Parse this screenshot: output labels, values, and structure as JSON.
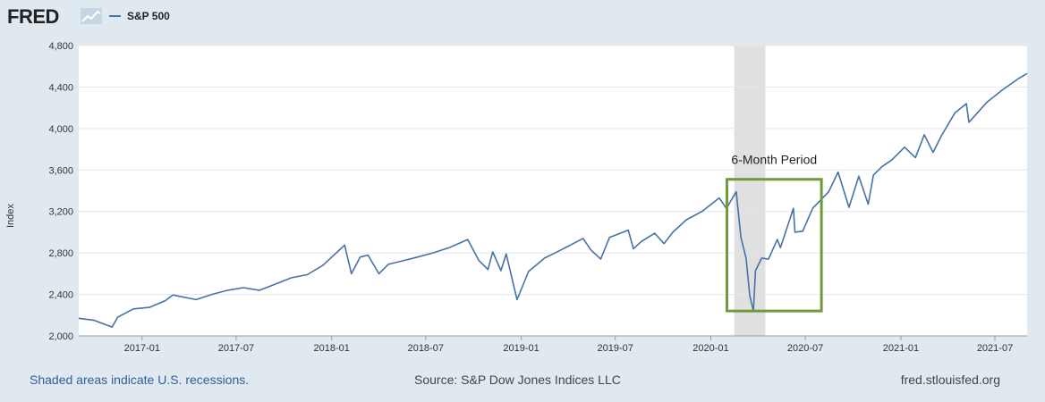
{
  "header": {
    "brand": "FRED",
    "legend_label": "S&P 500"
  },
  "footer": {
    "recession_note": "Shaded areas indicate U.S. recessions.",
    "source": "Source: S&P Dow Jones Indices LLC",
    "site": "fred.stlouisfed.org"
  },
  "colors": {
    "series": "#4572a7",
    "highlight_box": "#6f9a3a",
    "recession_shade": "#e0e0e0",
    "background": "#e1e9f0"
  },
  "chart_data": {
    "type": "line",
    "ylabel": "Index",
    "ylim": [
      2000,
      4800
    ],
    "yticks": [
      2000,
      2400,
      2800,
      3200,
      3600,
      4000,
      4400,
      4800
    ],
    "ytick_labels": [
      "2,000",
      "2,400",
      "2,800",
      "3,200",
      "3,600",
      "4,000",
      "4,400",
      "4,800"
    ],
    "xlim": [
      "2016-09-01",
      "2021-09-01"
    ],
    "xticks": [
      "2017-01-01",
      "2017-07-01",
      "2018-01-01",
      "2018-07-01",
      "2019-01-01",
      "2019-07-01",
      "2020-01-01",
      "2020-07-01",
      "2021-01-01",
      "2021-07-01"
    ],
    "xtick_labels": [
      "2017-01",
      "2017-07",
      "2018-01",
      "2018-07",
      "2019-01",
      "2019-07",
      "2020-01",
      "2020-07",
      "2021-01",
      "2021-07"
    ],
    "grid": true,
    "legend": "top-left",
    "recession": {
      "start": "2020-02-15",
      "end": "2020-04-15"
    },
    "annotation": {
      "text": "6-Month Period",
      "start": "2020-02-01",
      "end": "2020-08-01",
      "low": 2240,
      "high": 3510
    },
    "series": [
      {
        "name": "S&P 500",
        "dates": [
          "2016-09-01",
          "2016-10-01",
          "2016-11-04",
          "2016-11-15",
          "2016-12-15",
          "2017-01-15",
          "2017-02-15",
          "2017-03-01",
          "2017-04-15",
          "2017-05-15",
          "2017-06-15",
          "2017-07-15",
          "2017-08-15",
          "2017-09-15",
          "2017-10-15",
          "2017-11-15",
          "2017-12-15",
          "2018-01-26",
          "2018-02-08",
          "2018-02-25",
          "2018-03-12",
          "2018-04-02",
          "2018-04-20",
          "2018-05-15",
          "2018-06-15",
          "2018-07-15",
          "2018-08-15",
          "2018-09-20",
          "2018-10-11",
          "2018-10-29",
          "2018-11-07",
          "2018-11-23",
          "2018-12-03",
          "2018-12-24",
          "2019-01-15",
          "2019-02-15",
          "2019-03-15",
          "2019-04-30",
          "2019-05-15",
          "2019-06-03",
          "2019-06-20",
          "2019-07-26",
          "2019-08-05",
          "2019-08-20",
          "2019-09-15",
          "2019-10-03",
          "2019-10-20",
          "2019-11-15",
          "2019-12-15",
          "2020-01-17",
          "2020-01-31",
          "2020-02-19",
          "2020-02-28",
          "2020-03-09",
          "2020-03-16",
          "2020-03-23",
          "2020-03-27",
          "2020-04-08",
          "2020-04-21",
          "2020-05-08",
          "2020-05-14",
          "2020-06-08",
          "2020-06-11",
          "2020-06-26",
          "2020-07-15",
          "2020-08-15",
          "2020-09-02",
          "2020-09-23",
          "2020-10-12",
          "2020-10-30",
          "2020-11-09",
          "2020-11-25",
          "2020-12-15",
          "2021-01-08",
          "2021-01-29",
          "2021-02-15",
          "2021-03-04",
          "2021-03-20",
          "2021-04-15",
          "2021-05-07",
          "2021-05-12",
          "2021-06-15",
          "2021-07-15",
          "2021-08-15",
          "2021-09-01"
        ],
        "values": [
          2170,
          2150,
          2085,
          2180,
          2260,
          2275,
          2340,
          2395,
          2350,
          2400,
          2440,
          2465,
          2440,
          2500,
          2560,
          2590,
          2680,
          2875,
          2600,
          2760,
          2780,
          2600,
          2690,
          2720,
          2760,
          2800,
          2850,
          2930,
          2730,
          2640,
          2810,
          2630,
          2790,
          2350,
          2620,
          2750,
          2820,
          2940,
          2830,
          2740,
          2950,
          3020,
          2840,
          2910,
          2990,
          2890,
          3000,
          3120,
          3200,
          3330,
          3230,
          3390,
          2950,
          2750,
          2390,
          2240,
          2630,
          2750,
          2740,
          2930,
          2850,
          3230,
          3000,
          3010,
          3230,
          3390,
          3580,
          3240,
          3540,
          3270,
          3550,
          3630,
          3700,
          3820,
          3720,
          3940,
          3770,
          3930,
          4150,
          4240,
          4060,
          4250,
          4370,
          4480,
          4530
        ]
      }
    ]
  }
}
